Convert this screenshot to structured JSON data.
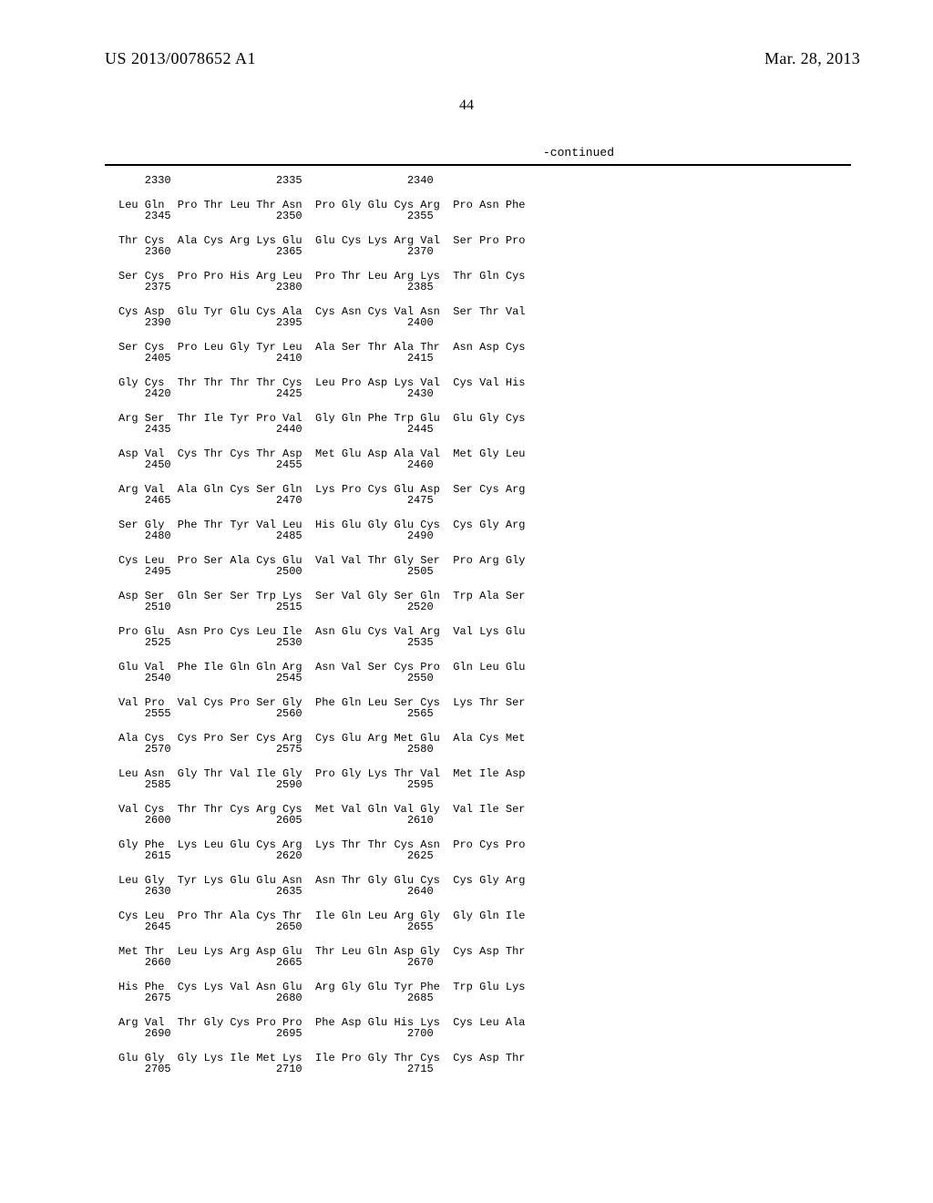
{
  "header": {
    "application_number": "US 2013/0078652 A1",
    "publication_date": "Mar. 28, 2013"
  },
  "page_number": "44",
  "continued_label": "-continued",
  "font": {
    "header_family": "Times New Roman",
    "header_size_pt": 14,
    "seq_family": "Courier New",
    "seq_size_pt": 9
  },
  "colors": {
    "text": "#000000",
    "background": "#ffffff",
    "rule": "#000000"
  },
  "sequence": {
    "first_num_row": "    2330                2335                2340",
    "blocks": [
      {
        "aa": "Leu Gln  Pro Thr Leu Thr Asn  Pro Gly Glu Cys Arg  Pro Asn Phe",
        "num": "    2345                2350                2355"
      },
      {
        "aa": "Thr Cys  Ala Cys Arg Lys Glu  Glu Cys Lys Arg Val  Ser Pro Pro",
        "num": "    2360                2365                2370"
      },
      {
        "aa": "Ser Cys  Pro Pro His Arg Leu  Pro Thr Leu Arg Lys  Thr Gln Cys",
        "num": "    2375                2380                2385"
      },
      {
        "aa": "Cys Asp  Glu Tyr Glu Cys Ala  Cys Asn Cys Val Asn  Ser Thr Val",
        "num": "    2390                2395                2400"
      },
      {
        "aa": "Ser Cys  Pro Leu Gly Tyr Leu  Ala Ser Thr Ala Thr  Asn Asp Cys",
        "num": "    2405                2410                2415"
      },
      {
        "aa": "Gly Cys  Thr Thr Thr Thr Cys  Leu Pro Asp Lys Val  Cys Val His",
        "num": "    2420                2425                2430"
      },
      {
        "aa": "Arg Ser  Thr Ile Tyr Pro Val  Gly Gln Phe Trp Glu  Glu Gly Cys",
        "num": "    2435                2440                2445"
      },
      {
        "aa": "Asp Val  Cys Thr Cys Thr Asp  Met Glu Asp Ala Val  Met Gly Leu",
        "num": "    2450                2455                2460"
      },
      {
        "aa": "Arg Val  Ala Gln Cys Ser Gln  Lys Pro Cys Glu Asp  Ser Cys Arg",
        "num": "    2465                2470                2475"
      },
      {
        "aa": "Ser Gly  Phe Thr Tyr Val Leu  His Glu Gly Glu Cys  Cys Gly Arg",
        "num": "    2480                2485                2490"
      },
      {
        "aa": "Cys Leu  Pro Ser Ala Cys Glu  Val Val Thr Gly Ser  Pro Arg Gly",
        "num": "    2495                2500                2505"
      },
      {
        "aa": "Asp Ser  Gln Ser Ser Trp Lys  Ser Val Gly Ser Gln  Trp Ala Ser",
        "num": "    2510                2515                2520"
      },
      {
        "aa": "Pro Glu  Asn Pro Cys Leu Ile  Asn Glu Cys Val Arg  Val Lys Glu",
        "num": "    2525                2530                2535"
      },
      {
        "aa": "Glu Val  Phe Ile Gln Gln Arg  Asn Val Ser Cys Pro  Gln Leu Glu",
        "num": "    2540                2545                2550"
      },
      {
        "aa": "Val Pro  Val Cys Pro Ser Gly  Phe Gln Leu Ser Cys  Lys Thr Ser",
        "num": "    2555                2560                2565"
      },
      {
        "aa": "Ala Cys  Cys Pro Ser Cys Arg  Cys Glu Arg Met Glu  Ala Cys Met",
        "num": "    2570                2575                2580"
      },
      {
        "aa": "Leu Asn  Gly Thr Val Ile Gly  Pro Gly Lys Thr Val  Met Ile Asp",
        "num": "    2585                2590                2595"
      },
      {
        "aa": "Val Cys  Thr Thr Cys Arg Cys  Met Val Gln Val Gly  Val Ile Ser",
        "num": "    2600                2605                2610"
      },
      {
        "aa": "Gly Phe  Lys Leu Glu Cys Arg  Lys Thr Thr Cys Asn  Pro Cys Pro",
        "num": "    2615                2620                2625"
      },
      {
        "aa": "Leu Gly  Tyr Lys Glu Glu Asn  Asn Thr Gly Glu Cys  Cys Gly Arg",
        "num": "    2630                2635                2640"
      },
      {
        "aa": "Cys Leu  Pro Thr Ala Cys Thr  Ile Gln Leu Arg Gly  Gly Gln Ile",
        "num": "    2645                2650                2655"
      },
      {
        "aa": "Met Thr  Leu Lys Arg Asp Glu  Thr Leu Gln Asp Gly  Cys Asp Thr",
        "num": "    2660                2665                2670"
      },
      {
        "aa": "His Phe  Cys Lys Val Asn Glu  Arg Gly Glu Tyr Phe  Trp Glu Lys",
        "num": "    2675                2680                2685"
      },
      {
        "aa": "Arg Val  Thr Gly Cys Pro Pro  Phe Asp Glu His Lys  Cys Leu Ala",
        "num": "    2690                2695                2700"
      },
      {
        "aa": "Glu Gly  Gly Lys Ile Met Lys  Ile Pro Gly Thr Cys  Cys Asp Thr",
        "num": "    2705                2710                2715"
      }
    ]
  }
}
